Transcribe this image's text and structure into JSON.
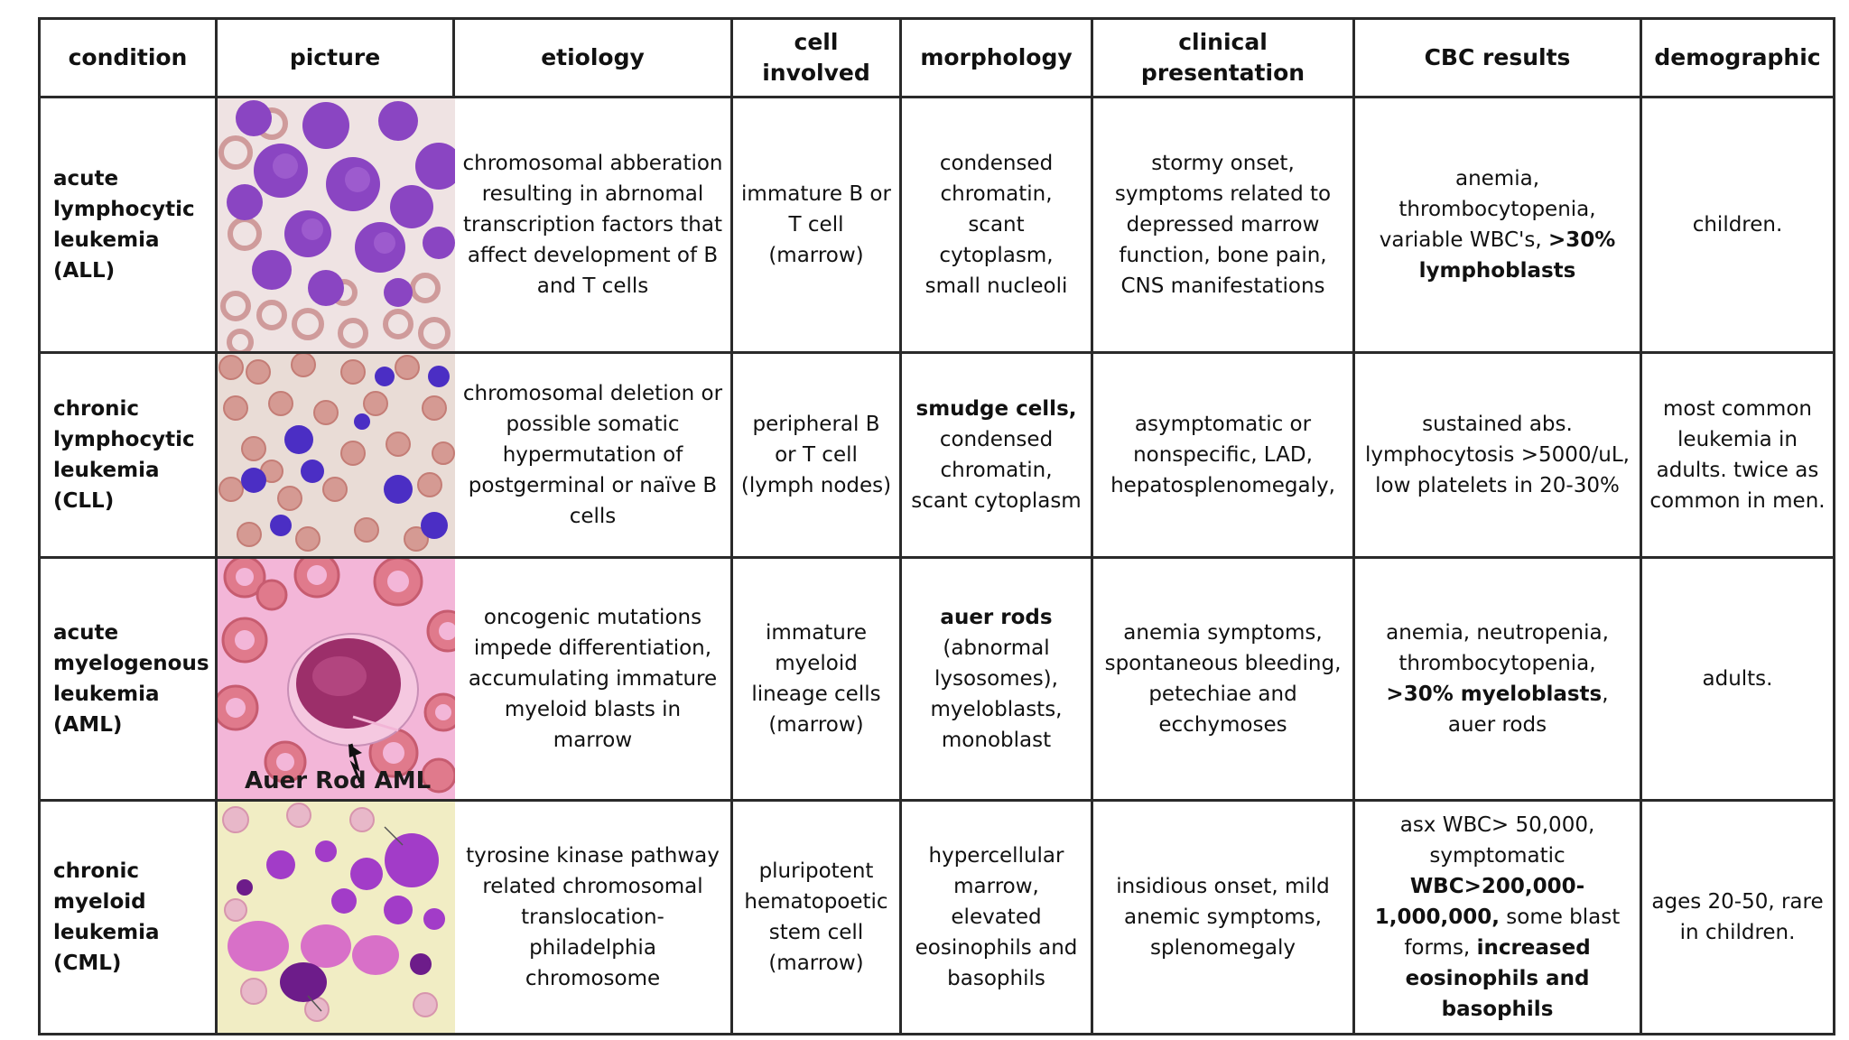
{
  "headers": [
    "condition",
    "picture",
    "etiology",
    "cell involved",
    "morphology",
    "clinical presentation",
    "CBC results",
    "demographic"
  ],
  "rows": [
    {
      "condition": "acute lymphocytic leukemia (ALL)",
      "etiology": "chromosomal abberation resulting in abrnomal transcription factors that affect development of B and T cells",
      "cell": "immature B or T cell (marrow)",
      "morph_bold": "",
      "morph": "condensed chromatin, scant cytoplasm, small nucleoli",
      "clinical": "stormy onset, symptoms related to depressed marrow function, bone pain, CNS manifestations",
      "cbc_a": "anemia, thrombocytopenia, variable WBC's, ",
      "cbc_b": ">30% lymphoblasts",
      "cbc_c": "",
      "cbc_d": "",
      "demo": "children."
    },
    {
      "condition": "chronic lymphocytic leukemia (CLL)",
      "etiology": "chromosomal deletion or possible somatic hypermutation  of postgerminal or naïve B cells",
      "cell": "peripheral B or T cell (lymph nodes)",
      "morph_bold": "smudge cells,",
      "morph": "condensed chromatin, scant cytoplasm",
      "clinical": "asymptomatic or nonspecific, LAD, hepatosplenomegaly,",
      "cbc_a": "sustained abs. lymphocytosis >5000/uL, low platelets in 20-30%",
      "cbc_b": "",
      "cbc_c": "",
      "cbc_d": "",
      "demo": "most common leukemia in adults. twice as common in men."
    },
    {
      "condition": "acute myelogenous leukemia (AML)",
      "etiology": "oncogenic mutations impede differentiation, accumulating immature myeloid blasts in marrow",
      "cell": "immature myeloid lineage cells (marrow)",
      "morph_bold": "auer rods",
      "morph": "(abnormal lysosomes), myeloblasts, monoblast",
      "clinical": "anemia symptoms, spontaneous bleeding, petechiae and ecchymoses",
      "cbc_a": "anemia, neutropenia, thrombocytopenia, ",
      "cbc_b": ">30% myeloblasts",
      "cbc_c": ", auer rods",
      "cbc_d": "",
      "demo": "adults."
    },
    {
      "condition": "chronic myeloid leukemia (CML)",
      "etiology": "tyrosine kinase pathway related chromosomal translocation- philadelphia chromosome",
      "cell": "pluripotent hematopoetic stem cell (marrow)",
      "morph_bold": "",
      "morph": "hypercellular marrow, elevated eosinophils and basophils",
      "clinical": "insidious onset, mild anemic symptoms, splenomegaly",
      "cbc_a": "asx WBC> 50,000, symptomatic ",
      "cbc_b": "WBC>200,000-1,000,000,",
      "cbc_c": " some blast forms, ",
      "cbc_d": "increased eosinophils and basophils",
      "demo": "ages 20-50, rare in children."
    }
  ],
  "image_caption": "Auer Rod AML",
  "colors": {
    "border": "#2a2a2a",
    "stain_purple": "#7b3fb0",
    "rbc_pink": "#d98a8a",
    "aml_background": "#f3b6d8"
  }
}
